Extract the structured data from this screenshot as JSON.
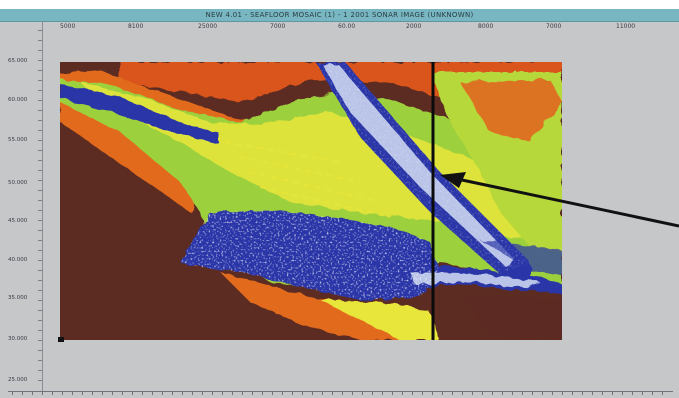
{
  "window": {
    "title": "NEW 4.01 - SEAFLOOR MOSAIC (1) - 1 2001 SONAR IMAGE (UNKNOWN)"
  },
  "x_axis": {
    "tick_labels": [
      "5000",
      "8100",
      "25000",
      "7000",
      "60.00",
      "2000",
      "8000",
      "7000",
      "11000"
    ]
  },
  "y_axis": {
    "tick_labels": [
      "65.000",
      "60.000",
      "55.000",
      "50.000",
      "45.000",
      "40.000",
      "35.000",
      "30.000",
      "25.000"
    ]
  },
  "colors": {
    "background": "#c6c7c9",
    "titlebar": "#78b7c1",
    "land_brown": "#5c2b22",
    "orange": "#e26a1c",
    "yellow": "#e9e63a",
    "green": "#8fcb3f",
    "blue": "#2a36a8",
    "light_blue": "#b9c4e8",
    "marker_line": "#0b0b0b"
  }
}
